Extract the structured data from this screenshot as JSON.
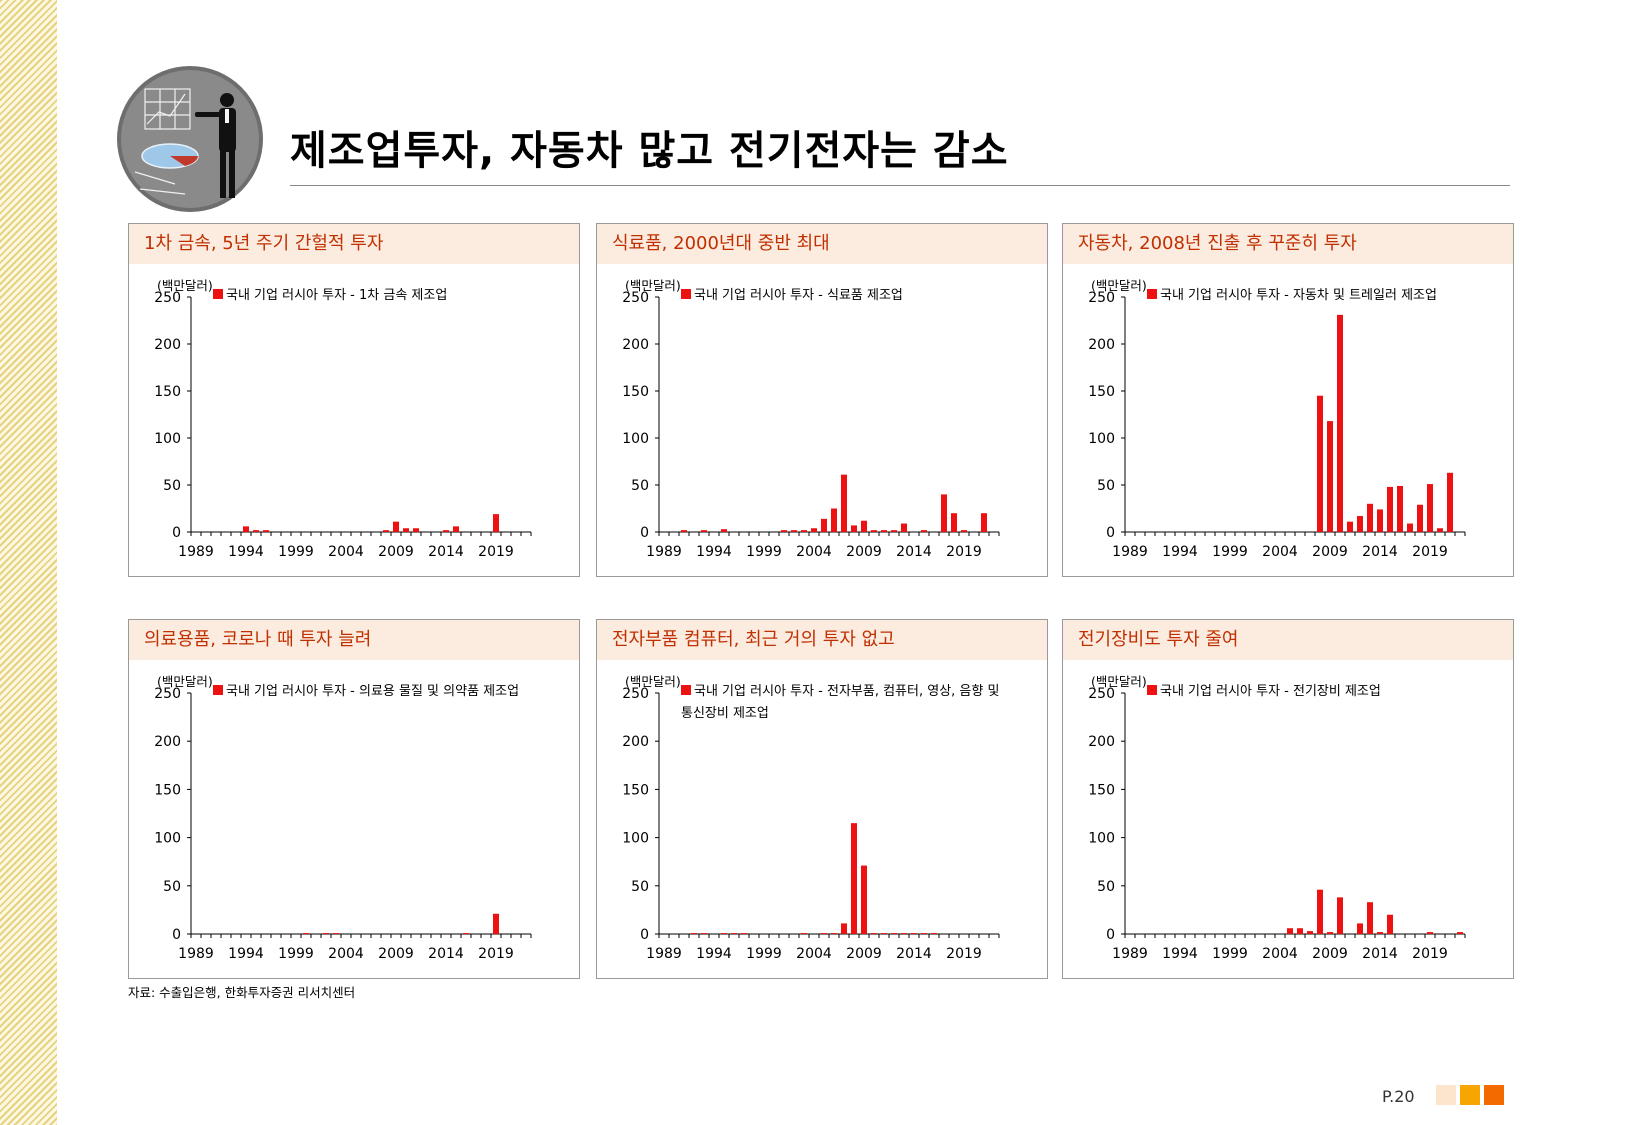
{
  "header": {
    "title": "제조업투자, 자동차 많고 전기전자는 감소"
  },
  "footer": {
    "source": "자료: 수출입은행, 한화투자증권 리서치센터",
    "page": "P.20",
    "accent_colors": [
      "#fde4cc",
      "#f7a500",
      "#f26a00"
    ]
  },
  "colors": {
    "bar": "#ee1111",
    "panel_header_bg": "#fcebdf",
    "panel_header_text": "#c03000"
  },
  "chart_data": [
    {
      "type": "bar",
      "panel_title": "1차 금속, 5년 주기 간헐적 투자",
      "unit": "(백만달러)",
      "legend": [
        "국내 기업 러시아 투자 - 1차 금속 제조업"
      ],
      "x_ticks": [
        "1989",
        "1994",
        "1999",
        "2004",
        "2009",
        "2014",
        "2019"
      ],
      "y_ticks": [
        "0",
        "50",
        "100",
        "150",
        "200",
        "250"
      ],
      "ylim": [
        0,
        250
      ],
      "years": [
        1989,
        1990,
        1991,
        1992,
        1993,
        1994,
        1995,
        1996,
        1997,
        1998,
        1999,
        2000,
        2001,
        2002,
        2003,
        2004,
        2005,
        2006,
        2007,
        2008,
        2009,
        2010,
        2011,
        2012,
        2013,
        2014,
        2015,
        2016,
        2017,
        2018,
        2019,
        2020,
        2021,
        2022
      ],
      "values": [
        0,
        0,
        0,
        0,
        0,
        6,
        2,
        2,
        0,
        0,
        0,
        0,
        0,
        0,
        0,
        0,
        0,
        0,
        0,
        2,
        11,
        4,
        4,
        0,
        0,
        2,
        6,
        0,
        0,
        0,
        19,
        0,
        0,
        0
      ]
    },
    {
      "type": "bar",
      "panel_title": "식료품, 2000년대 중반 최대",
      "unit": "(백만달러)",
      "legend": [
        "국내 기업 러시아 투자 - 식료품 제조업"
      ],
      "x_ticks": [
        "1989",
        "1994",
        "1999",
        "2004",
        "2009",
        "2014",
        "2019"
      ],
      "y_ticks": [
        "0",
        "50",
        "100",
        "150",
        "200",
        "250"
      ],
      "ylim": [
        0,
        250
      ],
      "years": [
        1989,
        1990,
        1991,
        1992,
        1993,
        1994,
        1995,
        1996,
        1997,
        1998,
        1999,
        2000,
        2001,
        2002,
        2003,
        2004,
        2005,
        2006,
        2007,
        2008,
        2009,
        2010,
        2011,
        2012,
        2013,
        2014,
        2015,
        2016,
        2017,
        2018,
        2019,
        2020,
        2021,
        2022
      ],
      "values": [
        0,
        0,
        2,
        0,
        2,
        0,
        3,
        0,
        0,
        0,
        0,
        0,
        2,
        2,
        2,
        4,
        14,
        25,
        61,
        7,
        12,
        2,
        2,
        2,
        9,
        0,
        2,
        0,
        40,
        20,
        2,
        0,
        20,
        0
      ]
    },
    {
      "type": "bar",
      "panel_title": "자동차, 2008년 진출 후 꾸준히 투자",
      "unit": "(백만달러)",
      "legend": [
        "국내 기업 러시아 투자 - 자동차 및 트레일러 제조업"
      ],
      "x_ticks": [
        "1989",
        "1994",
        "1999",
        "2004",
        "2009",
        "2014",
        "2019"
      ],
      "y_ticks": [
        "0",
        "50",
        "100",
        "150",
        "200",
        "250"
      ],
      "ylim": [
        0,
        250
      ],
      "years": [
        1989,
        1990,
        1991,
        1992,
        1993,
        1994,
        1995,
        1996,
        1997,
        1998,
        1999,
        2000,
        2001,
        2002,
        2003,
        2004,
        2005,
        2006,
        2007,
        2008,
        2009,
        2010,
        2011,
        2012,
        2013,
        2014,
        2015,
        2016,
        2017,
        2018,
        2019,
        2020,
        2021,
        2022
      ],
      "values": [
        0,
        0,
        0,
        0,
        0,
        0,
        0,
        0,
        0,
        0,
        0,
        0,
        0,
        0,
        0,
        0,
        0,
        0,
        0,
        145,
        118,
        231,
        11,
        17,
        30,
        24,
        48,
        49,
        9,
        29,
        51,
        4,
        63,
        0
      ]
    },
    {
      "type": "bar",
      "panel_title": "의료용품, 코로나 때 투자 늘려",
      "unit": "(백만달러)",
      "legend": [
        "국내 기업 러시아 투자 - 의료용 물질 및 의약품 제조업"
      ],
      "x_ticks": [
        "1989",
        "1994",
        "1999",
        "2004",
        "2009",
        "2014",
        "2019"
      ],
      "y_ticks": [
        "0",
        "50",
        "100",
        "150",
        "200",
        "250"
      ],
      "ylim": [
        0,
        250
      ],
      "years": [
        1989,
        1990,
        1991,
        1992,
        1993,
        1994,
        1995,
        1996,
        1997,
        1998,
        1999,
        2000,
        2001,
        2002,
        2003,
        2004,
        2005,
        2006,
        2007,
        2008,
        2009,
        2010,
        2011,
        2012,
        2013,
        2014,
        2015,
        2016,
        2017,
        2018,
        2019,
        2020,
        2021,
        2022
      ],
      "values": [
        0,
        0,
        0,
        0,
        0,
        0,
        0,
        0,
        0,
        0,
        0,
        1,
        0,
        1,
        1,
        0,
        0,
        0,
        0,
        0,
        0,
        0,
        0,
        0,
        0,
        0,
        0,
        1,
        0,
        0,
        21,
        0,
        0,
        0
      ]
    },
    {
      "type": "bar",
      "panel_title": "전자부품 컴퓨터, 최근 거의 투자 없고",
      "unit": "(백만달러)",
      "legend": [
        "국내 기업 러시아 투자 - 전자부품, 컴퓨터, 영상, 음향 및",
        "통신장비 제조업"
      ],
      "x_ticks": [
        "1989",
        "1994",
        "1999",
        "2004",
        "2009",
        "2014",
        "2019"
      ],
      "y_ticks": [
        "0",
        "50",
        "100",
        "150",
        "200",
        "250"
      ],
      "ylim": [
        0,
        250
      ],
      "years": [
        1989,
        1990,
        1991,
        1992,
        1993,
        1994,
        1995,
        1996,
        1997,
        1998,
        1999,
        2000,
        2001,
        2002,
        2003,
        2004,
        2005,
        2006,
        2007,
        2008,
        2009,
        2010,
        2011,
        2012,
        2013,
        2014,
        2015,
        2016,
        2017,
        2018,
        2019,
        2020,
        2021,
        2022
      ],
      "values": [
        0,
        0,
        0,
        1,
        1,
        0,
        1,
        1,
        1,
        0,
        0,
        0,
        0,
        0,
        1,
        0,
        1,
        1,
        11,
        115,
        71,
        1,
        1,
        1,
        1,
        1,
        1,
        1,
        0,
        0,
        0,
        0,
        0,
        0
      ]
    },
    {
      "type": "bar",
      "panel_title": "전기장비도 투자 줄여",
      "unit": "(백만달러)",
      "legend": [
        "국내 기업 러시아 투자 - 전기장비 제조업"
      ],
      "x_ticks": [
        "1989",
        "1994",
        "1999",
        "2004",
        "2009",
        "2014",
        "2019"
      ],
      "y_ticks": [
        "0",
        "50",
        "100",
        "150",
        "200",
        "250"
      ],
      "ylim": [
        0,
        250
      ],
      "years": [
        1989,
        1990,
        1991,
        1992,
        1993,
        1994,
        1995,
        1996,
        1997,
        1998,
        1999,
        2000,
        2001,
        2002,
        2003,
        2004,
        2005,
        2006,
        2007,
        2008,
        2009,
        2010,
        2011,
        2012,
        2013,
        2014,
        2015,
        2016,
        2017,
        2018,
        2019,
        2020,
        2021,
        2022
      ],
      "values": [
        0,
        0,
        0,
        0,
        0,
        0,
        0,
        0,
        0,
        0,
        0,
        0,
        0,
        0,
        0,
        0,
        6,
        6,
        3,
        46,
        2,
        38,
        0,
        11,
        33,
        2,
        20,
        0,
        0,
        0,
        2,
        0,
        0,
        2
      ]
    }
  ]
}
